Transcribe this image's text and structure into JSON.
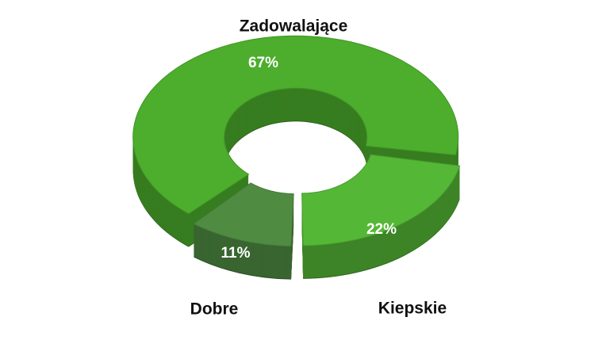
{
  "chart_data": {
    "type": "pie",
    "donut": true,
    "categories": [
      "Zadowalające",
      "Kiepskie",
      "Dobre"
    ],
    "values": [
      67,
      22,
      11
    ],
    "value_labels": [
      "67%",
      "22%",
      "11%"
    ],
    "colors": [
      "#4cae2c",
      "#55b736",
      "#4f8c42"
    ]
  }
}
